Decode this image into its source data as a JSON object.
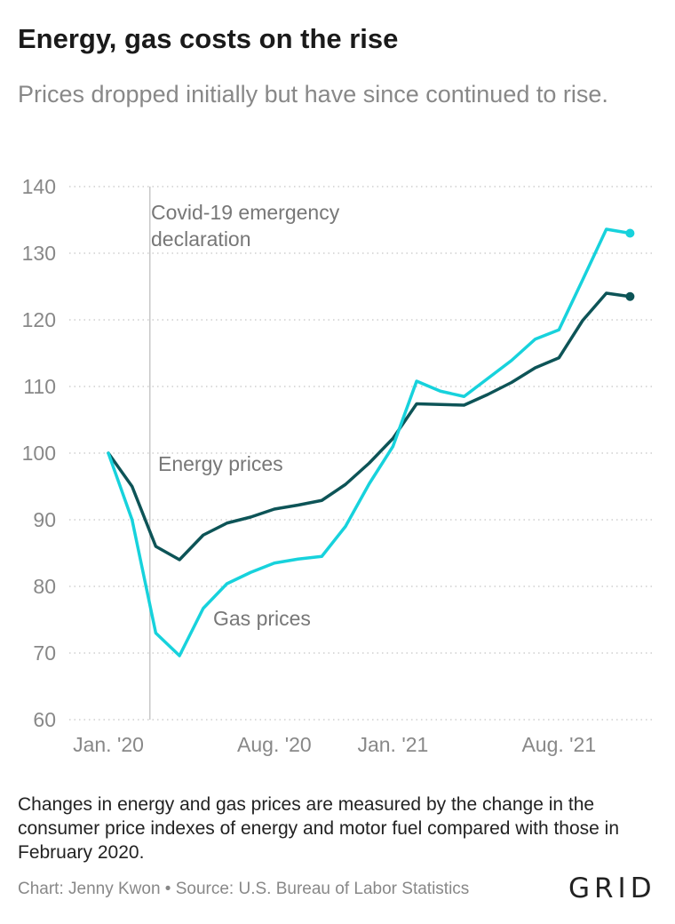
{
  "header": {
    "title": "Energy, gas costs on the rise",
    "subtitle": "Prices dropped initially but have since continued to rise."
  },
  "chart_data": {
    "type": "line",
    "title": "Energy, gas costs on the rise",
    "subtitle": "Prices dropped initially but have since continued to rise.",
    "x_labels": [
      "Jan. '20",
      "Aug. '20",
      "Jan. '21",
      "Aug. '21"
    ],
    "x_label_months": [
      0,
      7,
      12,
      19
    ],
    "x_months": [
      0,
      1,
      2,
      3,
      4,
      5,
      6,
      7,
      8,
      9,
      10,
      11,
      12,
      13,
      14,
      15,
      16,
      17,
      18,
      19,
      20,
      21,
      22
    ],
    "ylim": [
      60,
      140
    ],
    "yticks": [
      60,
      70,
      80,
      90,
      100,
      110,
      120,
      130,
      140
    ],
    "grid": "horizontal dotted",
    "series": [
      {
        "name": "Energy prices",
        "color": "#0d5457",
        "values": [
          100,
          95,
          86,
          84,
          87.7,
          89.5,
          90.4,
          91.6,
          92.2,
          92.9,
          95.3,
          98.5,
          102.2,
          107.4,
          107.3,
          107.2,
          108.8,
          110.6,
          112.8,
          114.3,
          119.9,
          124,
          123.5
        ]
      },
      {
        "name": "Gas prices",
        "color": "#17d2dc",
        "values": [
          100,
          90,
          73,
          69.6,
          76.7,
          80.4,
          82.1,
          83.5,
          84.1,
          84.5,
          89,
          95.4,
          101,
          110.8,
          109.3,
          108.5,
          111.2,
          113.9,
          117.1,
          118.5,
          126,
          133.6,
          133
        ]
      }
    ],
    "annotations": [
      {
        "text_lines": [
          "Covid-19 emergency",
          "declaration"
        ],
        "at_month": 1.75
      },
      {
        "text": "Energy prices"
      },
      {
        "text": "Gas prices"
      }
    ]
  },
  "footer": {
    "note": "Changes in energy and gas prices are measured by the change in the consumer price indexes of energy and motor fuel compared with those in February 2020.",
    "credit": "Chart: Jenny Kwon • Source: U.S. Bureau of Labor Statistics",
    "logo": "GRID"
  }
}
